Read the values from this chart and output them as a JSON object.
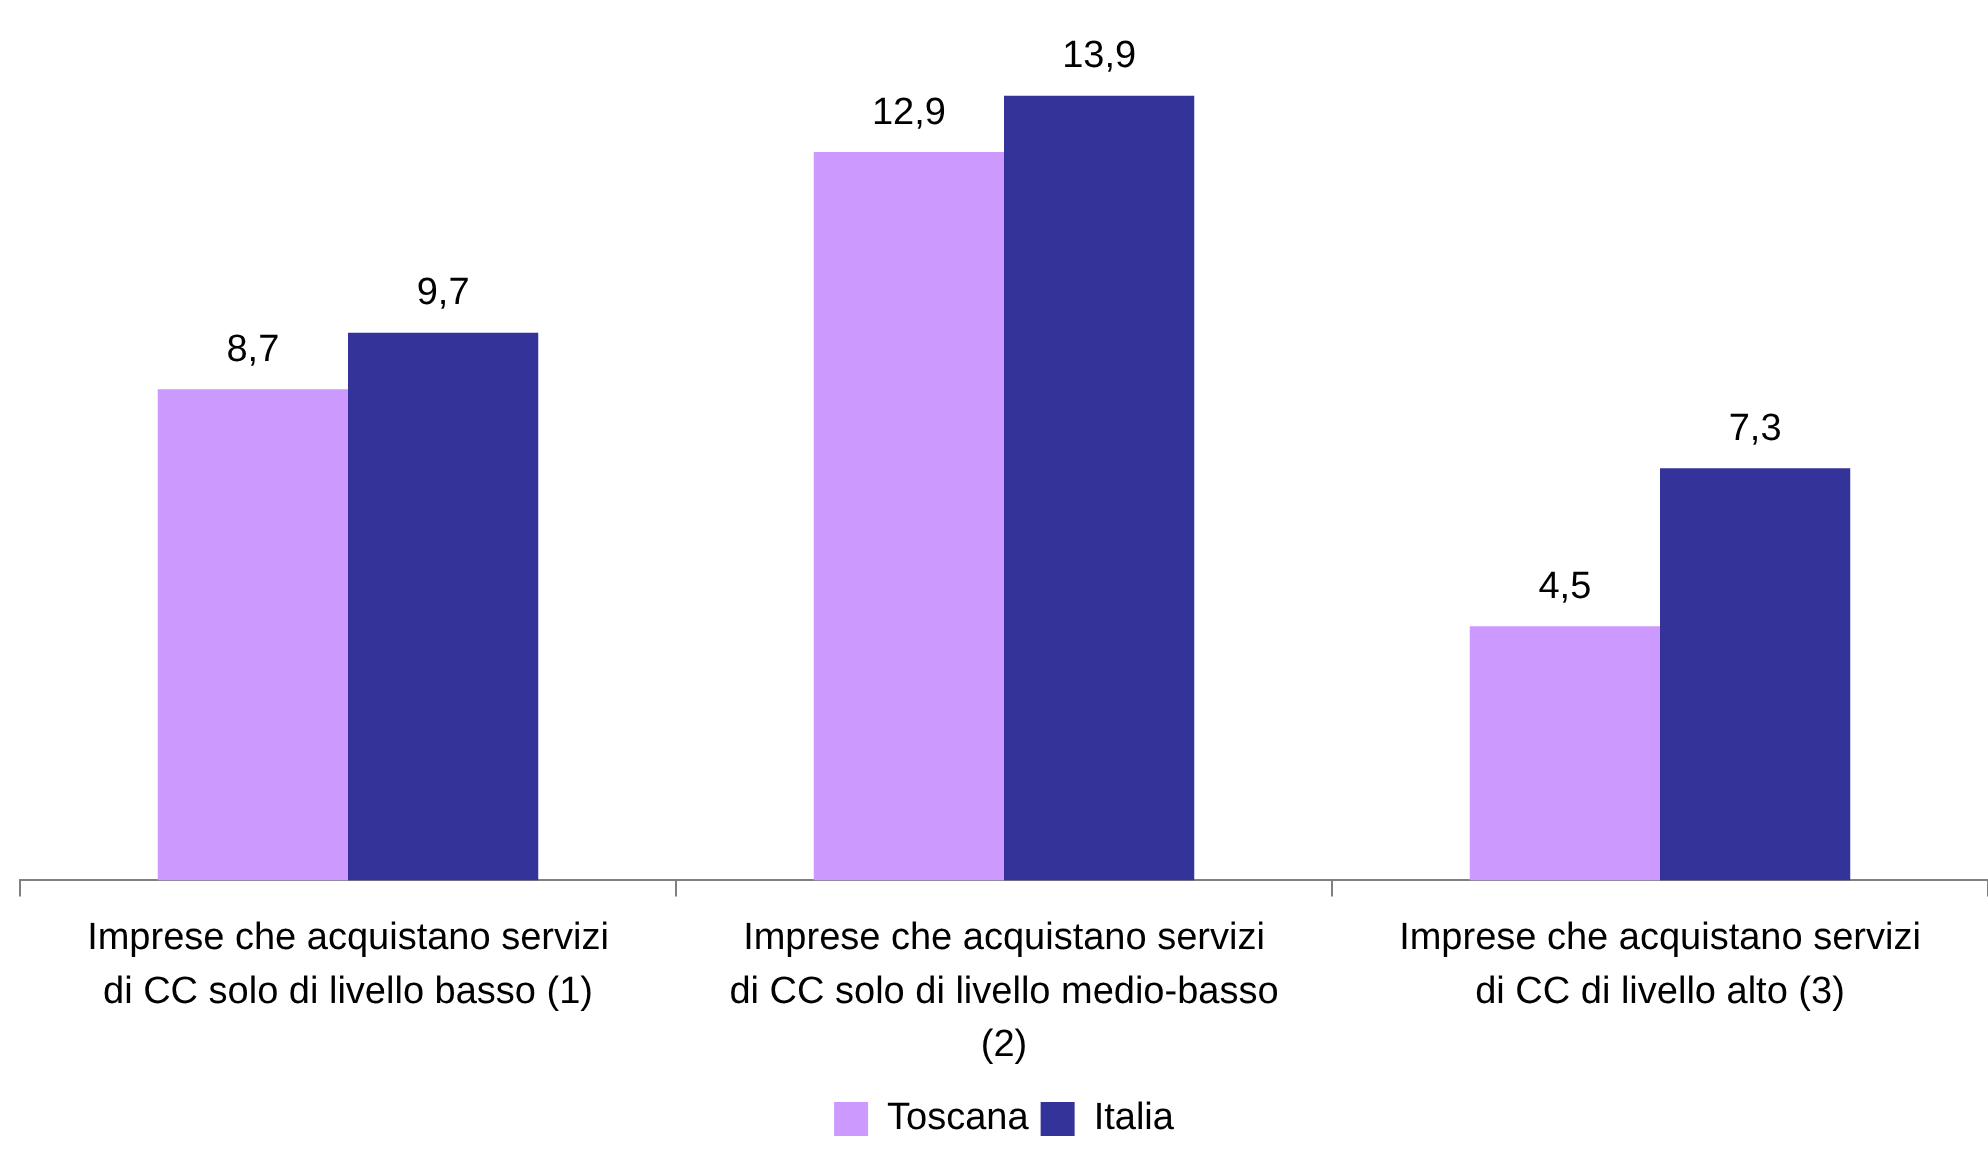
{
  "chart_data": {
    "type": "bar",
    "categories": [
      "Imprese che acquistano servizi di CC solo di livello basso (1)",
      "Imprese che acquistano servizi di CC solo di livello medio-basso (2)",
      "Imprese che acquistano servizi di CC di livello alto (3)"
    ],
    "series": [
      {
        "name": "Toscana",
        "color": "#cc99ff",
        "values": [
          8.7,
          12.9,
          4.5
        ],
        "value_labels": [
          "8,7",
          "12,9",
          "4,5"
        ]
      },
      {
        "name": "Italia",
        "color": "#333399",
        "values": [
          9.7,
          13.9,
          7.3
        ],
        "value_labels": [
          "9,7",
          "13,9",
          "7,3"
        ]
      }
    ],
    "legend": "bottom",
    "grid": false,
    "tick_labels": "x"
  }
}
